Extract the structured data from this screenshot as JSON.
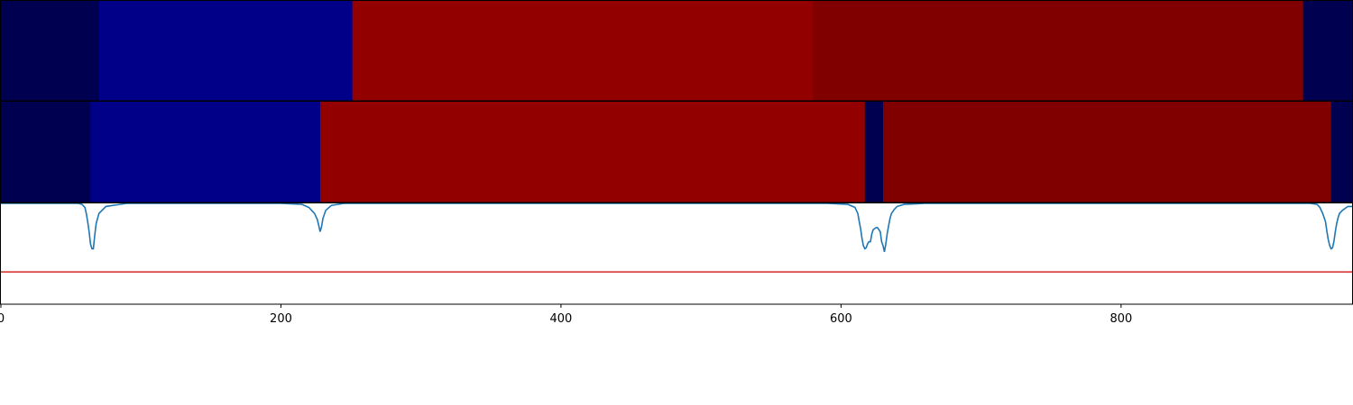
{
  "chart_data": [
    {
      "type": "heatmap",
      "xlim": [
        0,
        965
      ],
      "segments": [
        {
          "start": 0,
          "end": 70,
          "color": "#000050"
        },
        {
          "start": 70,
          "end": 251,
          "color": "#000088"
        },
        {
          "start": 251,
          "end": 580,
          "color": "#920000"
        },
        {
          "start": 580,
          "end": 930,
          "color": "#800000"
        },
        {
          "start": 930,
          "end": 965,
          "color": "#000050"
        }
      ]
    },
    {
      "type": "heatmap",
      "xlim": [
        0,
        965
      ],
      "segments": [
        {
          "start": 0,
          "end": 64,
          "color": "#000050"
        },
        {
          "start": 64,
          "end": 228,
          "color": "#000088"
        },
        {
          "start": 228,
          "end": 617,
          "color": "#920000"
        },
        {
          "start": 617,
          "end": 630,
          "color": "#000050"
        },
        {
          "start": 630,
          "end": 950,
          "color": "#800000"
        },
        {
          "start": 950,
          "end": 965,
          "color": "#000050"
        }
      ]
    },
    {
      "type": "line",
      "xlim": [
        0,
        965
      ],
      "ylim": [
        0,
        1
      ],
      "xticks": [
        0,
        200,
        400,
        600,
        800
      ],
      "xtick_labels": [
        "0",
        "200",
        "400",
        "600",
        "800"
      ],
      "threshold": 0.32,
      "threshold_color": "#d62728",
      "line_color": "#1f77b4",
      "series": [
        {
          "x": [
            0,
            50,
            55,
            58,
            60,
            61,
            62,
            63,
            64,
            65,
            66,
            67,
            68,
            70,
            75,
            90,
            200,
            215,
            220,
            224,
            226,
            227,
            228,
            229,
            230,
            232,
            236,
            245,
            260,
            590,
            605,
            610,
            612,
            613,
            614,
            615,
            616,
            617,
            618,
            619,
            620,
            621,
            622,
            623,
            624,
            625,
            626,
            627,
            628,
            629,
            630,
            631,
            632,
            633,
            634,
            635,
            636,
            638,
            640,
            645,
            660,
            910,
            935,
            940,
            942,
            944,
            946,
            947,
            948,
            949,
            950,
            951,
            952,
            953,
            954,
            955,
            956,
            958,
            960,
            962,
            965
          ],
          "y": [
            1,
            1,
            1,
            0.99,
            0.96,
            0.9,
            0.82,
            0.72,
            0.6,
            0.55,
            0.55,
            0.68,
            0.8,
            0.9,
            0.97,
            1,
            1,
            0.99,
            0.96,
            0.9,
            0.84,
            0.78,
            0.72,
            0.77,
            0.85,
            0.93,
            0.98,
            1,
            1,
            1,
            0.99,
            0.96,
            0.9,
            0.82,
            0.75,
            0.65,
            0.58,
            0.55,
            0.56,
            0.6,
            0.62,
            0.62,
            0.7,
            0.74,
            0.75,
            0.76,
            0.76,
            0.74,
            0.72,
            0.62,
            0.58,
            0.52,
            0.6,
            0.7,
            0.78,
            0.85,
            0.9,
            0.94,
            0.97,
            0.99,
            1,
            1,
            1,
            0.99,
            0.96,
            0.9,
            0.82,
            0.72,
            0.64,
            0.58,
            0.55,
            0.56,
            0.62,
            0.72,
            0.8,
            0.86,
            0.9,
            0.93,
            0.95,
            0.97,
            0.97
          ]
        }
      ]
    }
  ]
}
